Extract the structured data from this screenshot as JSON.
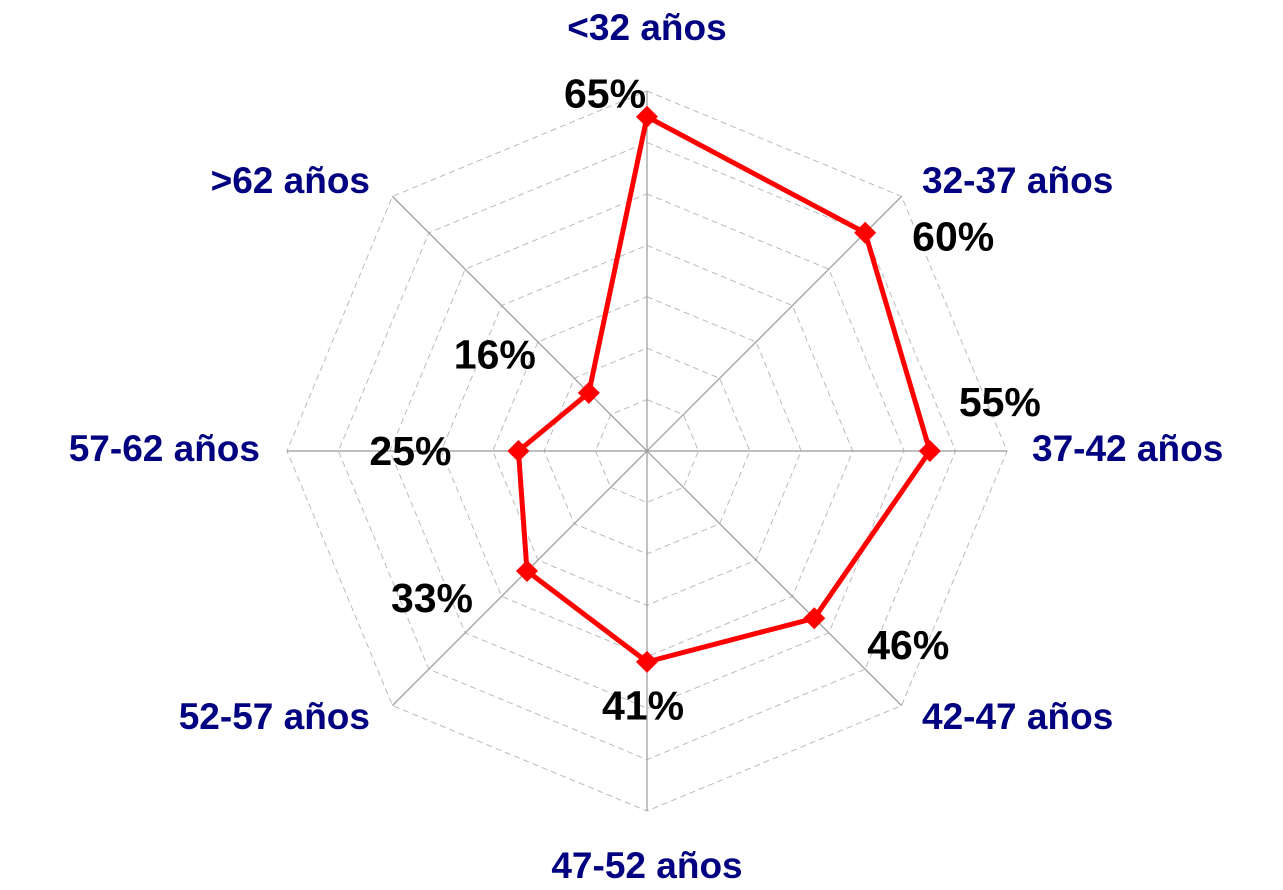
{
  "chart_data": {
    "type": "radar",
    "categories": [
      "<32 años",
      "32-37 años",
      "37-42 años",
      "42-47 años",
      "47-52 años",
      "52-57 años",
      "57-62 años",
      ">62 años"
    ],
    "series": [
      {
        "color": "#ff0000",
        "values": [
          65,
          60,
          55,
          46,
          41,
          33,
          25,
          16
        ],
        "value_labels": [
          "65%",
          "60%",
          "55%",
          "46%",
          "41%",
          "33%",
          "25%",
          "16%"
        ]
      }
    ],
    "ylim": [
      0,
      70
    ],
    "yticks": [
      0,
      10,
      20,
      30,
      40,
      50,
      60,
      70
    ],
    "grid": true
  }
}
